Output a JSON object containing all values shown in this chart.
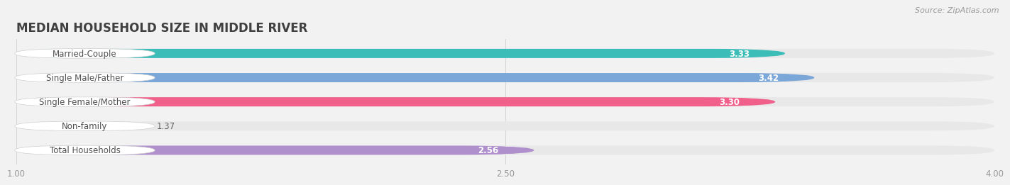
{
  "title": "MEDIAN HOUSEHOLD SIZE IN MIDDLE RIVER",
  "source": "Source: ZipAtlas.com",
  "categories": [
    "Married-Couple",
    "Single Male/Father",
    "Single Female/Mother",
    "Non-family",
    "Total Households"
  ],
  "values": [
    3.33,
    3.42,
    3.3,
    1.37,
    2.56
  ],
  "bar_colors": [
    "#3dbdb8",
    "#7ba7d8",
    "#f0608a",
    "#f5c98a",
    "#b090cc"
  ],
  "xlim": [
    1.0,
    4.0
  ],
  "xticks": [
    1.0,
    2.5,
    4.0
  ],
  "bg_color": "#f2f2f2",
  "bar_bg_color": "#e8e8e8",
  "title_fontsize": 12,
  "label_fontsize": 8.5,
  "value_fontsize": 8.5,
  "bar_height": 0.38,
  "bar_gap": 1.0,
  "title_color": "#404040"
}
